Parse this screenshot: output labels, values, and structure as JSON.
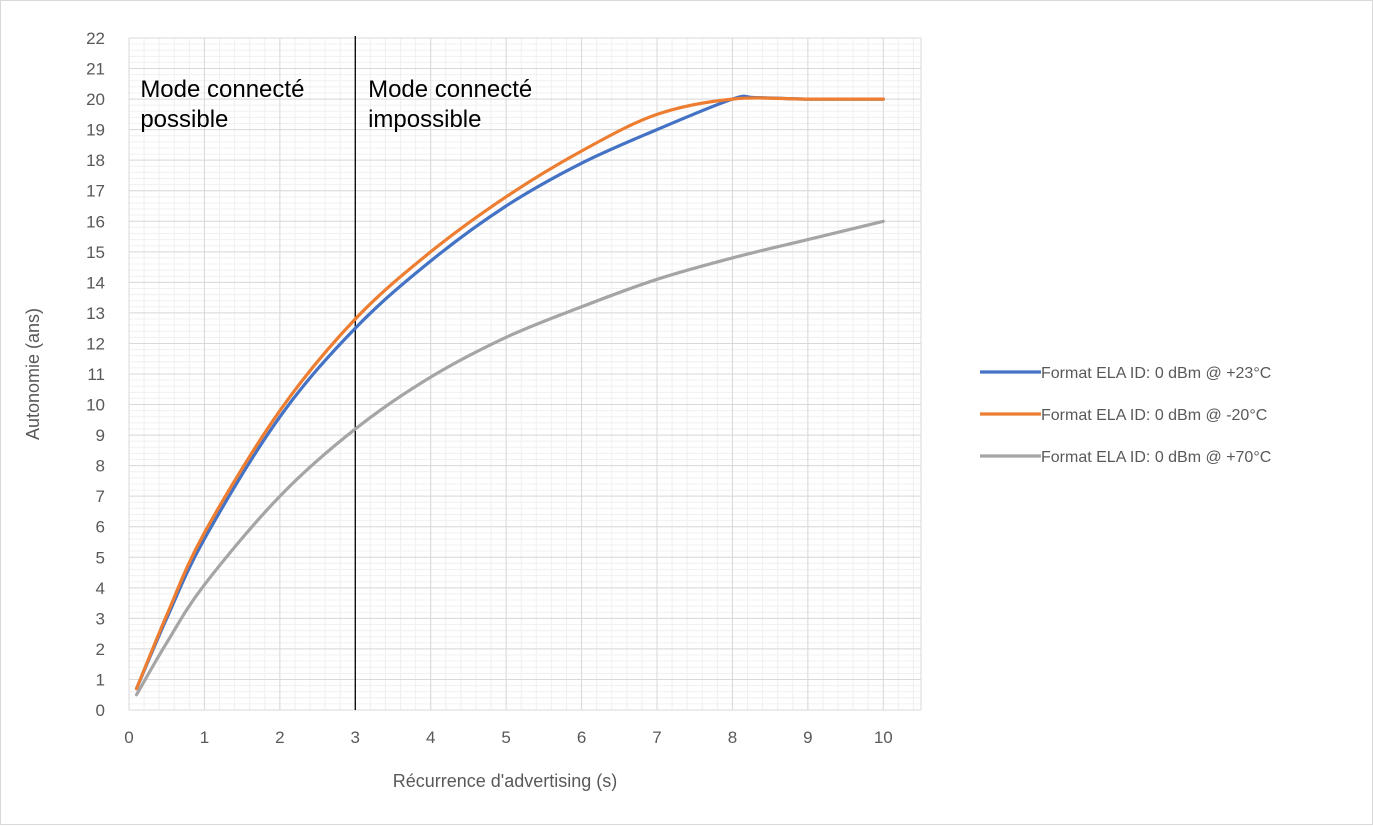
{
  "chart_data": {
    "type": "line",
    "title": "",
    "xlabel": "Récurrence d'advertising (s)",
    "ylabel": "Autonomie (ans)",
    "xlim": [
      0,
      10.5
    ],
    "ylim": [
      0,
      22
    ],
    "x_ticks": [
      0,
      1,
      2,
      3,
      4,
      5,
      6,
      7,
      8,
      9,
      10
    ],
    "y_ticks": [
      0,
      1,
      2,
      3,
      4,
      5,
      6,
      7,
      8,
      9,
      10,
      11,
      12,
      13,
      14,
      15,
      16,
      17,
      18,
      19,
      20,
      21,
      22
    ],
    "grid": "major and minor",
    "legend_position": "right",
    "series": [
      {
        "name": "Format ELA ID: 0 dBm @ +23°C",
        "color": "#4472c4",
        "x": [
          0.1,
          0.5,
          1,
          2,
          3,
          4,
          5,
          6,
          7,
          8,
          8.3,
          9,
          10
        ],
        "y": [
          0.7,
          3.0,
          5.6,
          9.6,
          12.5,
          14.7,
          16.5,
          17.9,
          19.0,
          20.0,
          20.05,
          20.0,
          20.0
        ]
      },
      {
        "name": "Format ELA ID: 0 dBm @ -20°C",
        "color": "#ed7d31",
        "x": [
          0.1,
          0.5,
          1,
          2,
          3,
          4,
          5,
          6,
          7,
          8,
          9,
          10
        ],
        "y": [
          0.7,
          3.1,
          5.8,
          9.8,
          12.8,
          15.0,
          16.8,
          18.3,
          19.5,
          20.0,
          20.0,
          20.0
        ]
      },
      {
        "name": "Format ELA ID: 0 dBm @ +70°C",
        "color": "#a5a5a5",
        "x": [
          0.1,
          0.5,
          1,
          2,
          3,
          4,
          5,
          6,
          7,
          8,
          9,
          10
        ],
        "y": [
          0.5,
          2.2,
          4.1,
          7.0,
          9.2,
          10.9,
          12.2,
          13.2,
          14.1,
          14.8,
          15.4,
          16.0
        ]
      }
    ],
    "vline": {
      "x": 3,
      "color": "#000000"
    },
    "annotations": [
      {
        "lines": [
          "Mode connecté",
          "possible"
        ],
        "side": "left"
      },
      {
        "lines": [
          "Mode connecté",
          "impossible"
        ],
        "side": "right"
      }
    ]
  }
}
